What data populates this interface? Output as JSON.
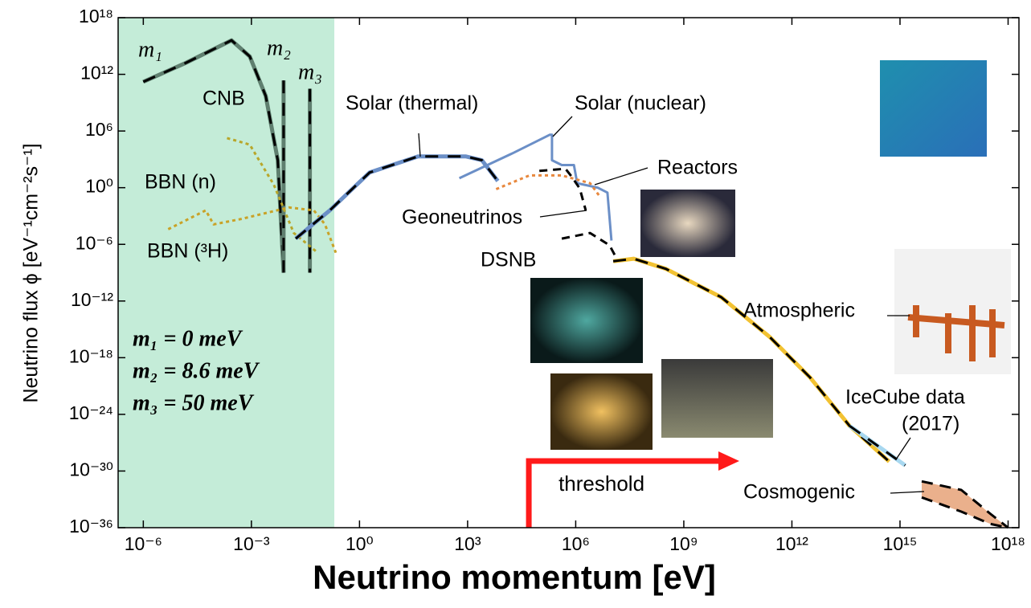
{
  "chart_data": {
    "type": "line",
    "x_label": "Neutrino momentum [eV]",
    "y_label": "Neutrino flux ϕ [eV⁻¹cm⁻²s⁻¹]",
    "xscale": "log",
    "yscale": "log",
    "xlim": [
      2e-07,
      2e+18
    ],
    "ylim": [
      1e-36,
      1e+18
    ],
    "xticks": [
      {
        "value": 1e-06,
        "label": "10⁻⁶"
      },
      {
        "value": 0.001,
        "label": "10⁻³"
      },
      {
        "value": 1,
        "label": "10⁰"
      },
      {
        "value": 1000.0,
        "label": "10³"
      },
      {
        "value": 1000000.0,
        "label": "10⁶"
      },
      {
        "value": 1000000000.0,
        "label": "10⁹"
      },
      {
        "value": 1000000000000.0,
        "label": "10¹²"
      },
      {
        "value": 1000000000000000.0,
        "label": "10¹⁵"
      },
      {
        "value": 1e+18,
        "label": "10¹⁸"
      }
    ],
    "yticks": [
      {
        "value": 1e+18,
        "label": "10¹⁸"
      },
      {
        "value": 1000000000000.0,
        "label": "10¹²"
      },
      {
        "value": 1000000.0,
        "label": "10⁶"
      },
      {
        "value": 1,
        "label": "10⁰"
      },
      {
        "value": 1e-06,
        "label": "10⁻⁶"
      },
      {
        "value": 1e-12,
        "label": "10⁻¹²"
      },
      {
        "value": 1e-18,
        "label": "10⁻¹⁸"
      },
      {
        "value": 1e-24,
        "label": "10⁻²⁴"
      },
      {
        "value": 1e-30,
        "label": "10⁻³⁰"
      },
      {
        "value": 1e-36,
        "label": "10⁻³⁶"
      }
    ],
    "shaded_xlim": [
      2e-07,
      0.2
    ],
    "shade_color": "#c4ecd8",
    "series": [
      {
        "color": "#5f7f6f",
        "style": "dashed-overlay",
        "x": [
          1e-06,
          1.5e-05,
          0.00028,
          0.0009,
          0.0025,
          0.0054,
          0.0078
        ],
        "values": [
          160000000000.0,
          16000000000000.0,
          4000000000000000.0,
          80000000000000.0,
          5000000000.0,
          800,
          1e-09
        ]
      },
      {
        "color": "#5f7f6f",
        "style": "dashed-overlay",
        "x": [
          0.0078,
          0.0078
        ],
        "values": [
          230000000000.0,
          1e-09
        ]
      },
      {
        "color": "#5f7f6f",
        "style": "dashed-overlay",
        "x": [
          0.042,
          0.042
        ],
        "values": [
          30000000000.0,
          1e-09
        ]
      },
      {
        "color": "#b8a62a",
        "style": "dotted",
        "x": [
          0.00021,
          0.0009,
          0.0042,
          0.015,
          0.069
        ],
        "values": [
          180000.0,
          36000.0,
          2,
          1.6e-05,
          1.3e-07
        ]
      },
      {
        "color": "#c9a227",
        "style": "dotted",
        "x": [
          4.9e-06,
          5.4e-05,
          8.9e-05,
          0.00054,
          0.011,
          0.054,
          0.11,
          0.22
        ],
        "values": [
          4e-05,
          0.004,
          0.00013,
          0.0005,
          0.008,
          0.004,
          0.00013,
          1.3e-07
        ]
      },
      {
        "color": "#6b8fc7",
        "style": "dashed-overlay",
        "x": [
          0.017,
          0.15,
          1.9,
          42,
          900,
          2500,
          6900
        ],
        "values": [
          4e-06,
          0.004,
          40,
          2000,
          2000,
          800,
          5
        ]
      },
      {
        "color": "#6b8fc7",
        "style": "solid",
        "x": [
          590,
          19000.0,
          190000.0,
          220000.0,
          220000.0,
          410000.0,
          890000.0,
          1100000.0,
          4100000.0,
          7600000.0,
          9800000.0
        ],
        "values": [
          10,
          5000.0,
          400000.0,
          400000.0,
          800,
          250,
          250,
          3,
          1,
          0.3,
          2.5e-06
        ]
      },
      {
        "color": "#e8883e",
        "style": "dotted",
        "x": [
          6200,
          52000.0,
          410000.0,
          2500000.0,
          4800000.0
        ],
        "values": [
          0.7,
          20,
          20,
          3,
          0.1
        ]
      },
      {
        "color": "#000000",
        "style": "dashed",
        "x": [
          98000.0,
          520000.0,
          760000.0,
          1300000.0,
          1900000.0
        ],
        "values": [
          60,
          100,
          16,
          0.8,
          0.004
        ]
      },
      {
        "color": "#000000",
        "style": "dashed",
        "x": [
          410000.0,
          2500000.0,
          8700000.0,
          15000000.0
        ],
        "values": [
          4e-06,
          1.6e-05,
          8e-07,
          1.6e-08
        ]
      },
      {
        "color": "#f2c232",
        "style": "dashed-overlay",
        "x": [
          11000000.0,
          41000000.0,
          320000000.0,
          11000000000.0,
          240000000000.0,
          3200000000000.0,
          40000000000000.0,
          500000000000000.0
        ],
        "values": [
          1.6e-08,
          3e-08,
          2.5e-09,
          2.5e-12,
          1.6e-16,
          8e-21,
          6e-26,
          1e-29
        ]
      },
      {
        "color": "#a8d8f0",
        "style": "dashed-overlay",
        "x": [
          40000000000000.0,
          1400000000000000.0
        ],
        "values": [
          6e-26,
          4e-30
        ]
      },
      {
        "color": "#eab08c",
        "style": "band",
        "x": [
          4000000000000000.0,
          5e+16,
          3.2e+17,
          1e+18
        ],
        "values": [
          8e-32,
          1e-32,
          3e-35,
          1e-36
        ],
        "lower": [
          1.6e-33,
          5e-35,
          2.5e-36,
          1e-36
        ]
      }
    ],
    "annotations": [
      "m₁",
      "m₂",
      "m₃",
      "CNB",
      "BBN (n)",
      "BBN (³H)",
      "Solar (thermal)",
      "Solar (nuclear)",
      "Reactors",
      "Geoneutrinos",
      "DSNB",
      "Atmospheric",
      "IceCube data",
      "(2017)",
      "Cosmogenic"
    ],
    "mass_values": [
      "m₁ = 0 meV",
      "m₂ = 8.6 meV",
      "m₃ = 50 meV"
    ],
    "threshold": {
      "label": "threshold",
      "x": 50000.0,
      "color": "#ff1a1a"
    }
  }
}
